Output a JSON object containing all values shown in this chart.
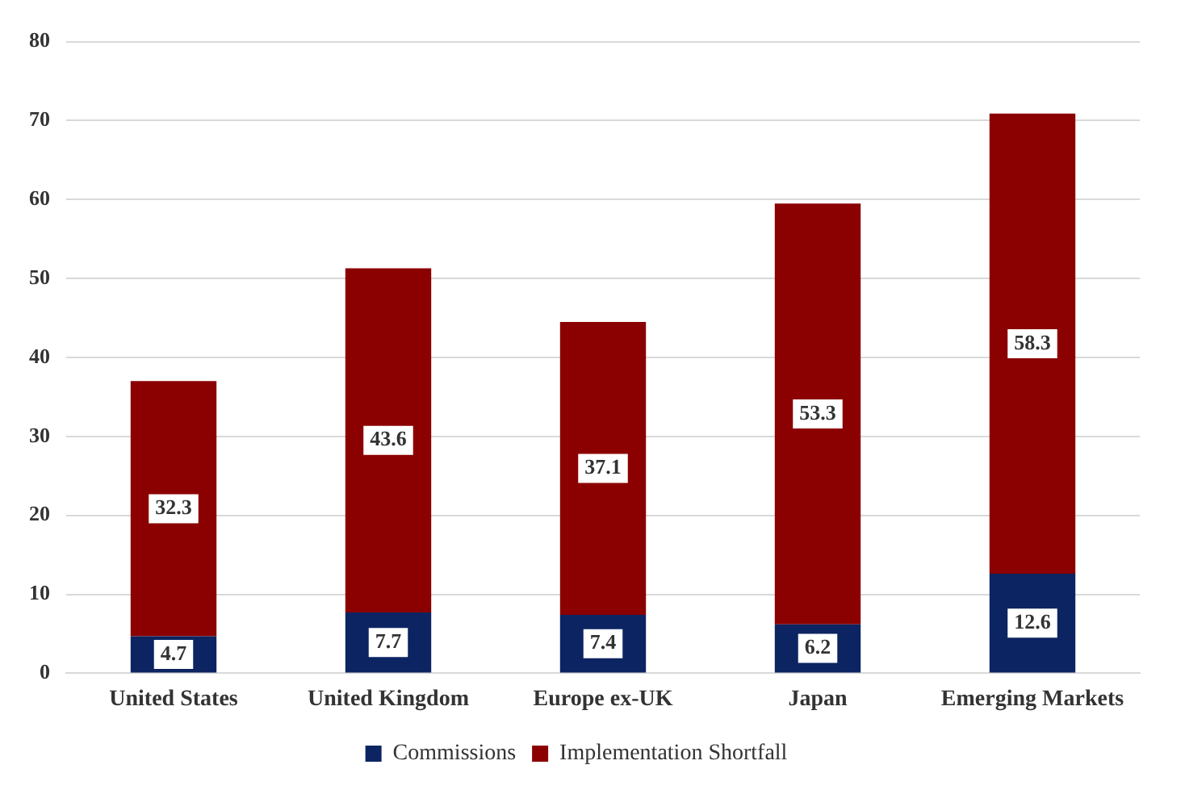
{
  "chart_data": {
    "type": "bar",
    "stacked": true,
    "categories": [
      "United States",
      "United Kingdom",
      "Europe ex-UK",
      "Japan",
      "Emerging Markets"
    ],
    "series": [
      {
        "name": "Commissions",
        "color": "#0c2461",
        "values": [
          4.7,
          7.7,
          7.4,
          6.2,
          12.6
        ]
      },
      {
        "name": "Implementation Shortfall",
        "color": "#8b0000",
        "values": [
          32.3,
          43.6,
          37.1,
          53.3,
          58.3
        ]
      }
    ],
    "ylim": [
      0,
      80
    ],
    "yticks": [
      0,
      10,
      20,
      30,
      40,
      50,
      60,
      70,
      80
    ],
    "grid": "y",
    "legend": "bottom",
    "data_labels": true
  }
}
